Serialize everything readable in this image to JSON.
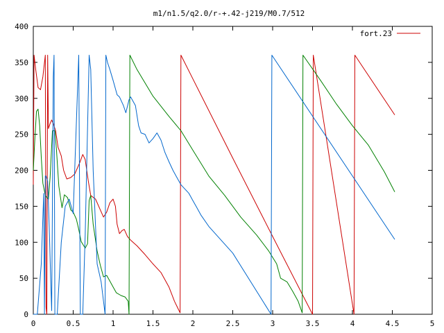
{
  "chart_data": {
    "type": "line",
    "title": "m1/n1.5/q2.0/r-+.42-j219/M0.7/512",
    "xlabel": "",
    "ylabel": "",
    "xlim": [
      0,
      5
    ],
    "ylim": [
      0,
      400
    ],
    "x_ticks": [
      0,
      0.5,
      1,
      1.5,
      2,
      2.5,
      3,
      3.5,
      4,
      4.5,
      5
    ],
    "x_tick_labels": [
      "0",
      "0.5",
      "1",
      "1.5",
      "2",
      "2.5",
      "3",
      "3.5",
      "4",
      "4.5",
      "5"
    ],
    "y_ticks": [
      0,
      50,
      100,
      150,
      200,
      250,
      300,
      350,
      400
    ],
    "y_tick_labels": [
      "0",
      "50",
      "100",
      "150",
      "200",
      "250",
      "300",
      "350",
      "400"
    ],
    "grid": false,
    "legend": {
      "position": "top-right",
      "entries": [
        {
          "label": "fort.23",
          "color": "#cc0000"
        }
      ]
    },
    "series": [
      {
        "color": "#cc0000",
        "points": [
          [
            0,
            180
          ],
          [
            0.01,
            360
          ],
          [
            0.03,
            340
          ],
          [
            0.06,
            315
          ],
          [
            0.09,
            312
          ],
          [
            0.12,
            330
          ],
          [
            0.15,
            360
          ],
          [
            0.16,
            10
          ],
          [
            0.17,
            0
          ],
          [
            0.18,
            360
          ],
          [
            0.19,
            258
          ],
          [
            0.21,
            265
          ],
          [
            0.23,
            270
          ],
          [
            0.25,
            265
          ],
          [
            0.28,
            255
          ],
          [
            0.31,
            232
          ],
          [
            0.35,
            220
          ],
          [
            0.38,
            200
          ],
          [
            0.42,
            188
          ],
          [
            0.47,
            190
          ],
          [
            0.52,
            195
          ],
          [
            0.58,
            210
          ],
          [
            0.62,
            222
          ],
          [
            0.65,
            215
          ],
          [
            0.69,
            185
          ],
          [
            0.72,
            165
          ],
          [
            0.78,
            160
          ],
          [
            0.84,
            145
          ],
          [
            0.88,
            135
          ],
          [
            0.92,
            142
          ],
          [
            0.96,
            155
          ],
          [
            1.0,
            160
          ],
          [
            1.03,
            150
          ],
          [
            1.05,
            125
          ],
          [
            1.08,
            112
          ],
          [
            1.11,
            116
          ],
          [
            1.14,
            118
          ],
          [
            1.18,
            108
          ],
          [
            1.22,
            103
          ],
          [
            1.3,
            95
          ],
          [
            1.4,
            83
          ],
          [
            1.5,
            70
          ],
          [
            1.6,
            58
          ],
          [
            1.7,
            38
          ],
          [
            1.77,
            18
          ],
          [
            1.84,
            2
          ],
          [
            1.85,
            360
          ],
          [
            2.0,
            327
          ],
          [
            2.5,
            217
          ],
          [
            3.0,
            108
          ],
          [
            3.5,
            0
          ],
          [
            3.51,
            360
          ],
          [
            4.02,
            0
          ],
          [
            4.03,
            360
          ],
          [
            4.53,
            277
          ]
        ]
      },
      {
        "color": "#008000",
        "points": [
          [
            0,
            200
          ],
          [
            0.02,
            245
          ],
          [
            0.04,
            282
          ],
          [
            0.06,
            285
          ],
          [
            0.08,
            262
          ],
          [
            0.1,
            218
          ],
          [
            0.12,
            182
          ],
          [
            0.15,
            165
          ],
          [
            0.19,
            160
          ],
          [
            0.21,
            190
          ],
          [
            0.24,
            255
          ],
          [
            0.27,
            255
          ],
          [
            0.29,
            230
          ],
          [
            0.32,
            178
          ],
          [
            0.36,
            148
          ],
          [
            0.39,
            166
          ],
          [
            0.43,
            162
          ],
          [
            0.47,
            145
          ],
          [
            0.5,
            142
          ],
          [
            0.54,
            132
          ],
          [
            0.57,
            118
          ],
          [
            0.6,
            101
          ],
          [
            0.65,
            92
          ],
          [
            0.68,
            98
          ],
          [
            0.7,
            158
          ],
          [
            0.72,
            165
          ],
          [
            0.75,
            125
          ],
          [
            0.78,
            103
          ],
          [
            0.8,
            88
          ],
          [
            0.84,
            68
          ],
          [
            0.88,
            52
          ],
          [
            0.92,
            54
          ],
          [
            0.96,
            46
          ],
          [
            1.0,
            38
          ],
          [
            1.04,
            30
          ],
          [
            1.1,
            26
          ],
          [
            1.15,
            24
          ],
          [
            1.19,
            18
          ],
          [
            1.2,
            0
          ],
          [
            1.21,
            360
          ],
          [
            1.3,
            340
          ],
          [
            1.5,
            303
          ],
          [
            1.7,
            275
          ],
          [
            1.85,
            255
          ],
          [
            2.0,
            228
          ],
          [
            2.2,
            192
          ],
          [
            2.4,
            165
          ],
          [
            2.6,
            135
          ],
          [
            2.8,
            110
          ],
          [
            2.95,
            88
          ],
          [
            3.05,
            70
          ],
          [
            3.1,
            50
          ],
          [
            3.18,
            45
          ],
          [
            3.25,
            32
          ],
          [
            3.32,
            18
          ],
          [
            3.37,
            2
          ],
          [
            3.38,
            360
          ],
          [
            3.6,
            325
          ],
          [
            3.8,
            292
          ],
          [
            4.0,
            262
          ],
          [
            4.2,
            235
          ],
          [
            4.4,
            198
          ],
          [
            4.53,
            170
          ]
        ]
      },
      {
        "color": "#0066cc",
        "points": [
          [
            0,
            0
          ],
          [
            0.05,
            0
          ],
          [
            0.1,
            70
          ],
          [
            0.13,
            168
          ],
          [
            0.14,
            0
          ],
          [
            0.15,
            192
          ],
          [
            0.16,
            192
          ],
          [
            0.18,
            185
          ],
          [
            0.2,
            120
          ],
          [
            0.22,
            40
          ],
          [
            0.23,
            5
          ],
          [
            0.25,
            330
          ],
          [
            0.26,
            360
          ],
          [
            0.27,
            0
          ],
          [
            0.3,
            0
          ],
          [
            0.35,
            100
          ],
          [
            0.4,
            150
          ],
          [
            0.45,
            160
          ],
          [
            0.5,
            140
          ],
          [
            0.55,
            300
          ],
          [
            0.57,
            360
          ],
          [
            0.59,
            0
          ],
          [
            0.62,
            0
          ],
          [
            0.65,
            110
          ],
          [
            0.7,
            360
          ],
          [
            0.72,
            340
          ],
          [
            0.75,
            200
          ],
          [
            0.8,
            70
          ],
          [
            0.85,
            45
          ],
          [
            0.9,
            0
          ],
          [
            0.91,
            360
          ],
          [
            0.93,
            350
          ],
          [
            0.96,
            340
          ],
          [
            1.0,
            325
          ],
          [
            1.05,
            305
          ],
          [
            1.08,
            302
          ],
          [
            1.13,
            290
          ],
          [
            1.16,
            280
          ],
          [
            1.2,
            298
          ],
          [
            1.22,
            302
          ],
          [
            1.28,
            290
          ],
          [
            1.32,
            262
          ],
          [
            1.35,
            252
          ],
          [
            1.4,
            250
          ],
          [
            1.45,
            238
          ],
          [
            1.5,
            244
          ],
          [
            1.55,
            252
          ],
          [
            1.6,
            242
          ],
          [
            1.65,
            225
          ],
          [
            1.7,
            212
          ],
          [
            1.75,
            200
          ],
          [
            1.8,
            190
          ],
          [
            1.85,
            180
          ],
          [
            1.95,
            168
          ],
          [
            2.0,
            158
          ],
          [
            2.05,
            148
          ],
          [
            2.1,
            138
          ],
          [
            2.2,
            122
          ],
          [
            2.5,
            85
          ],
          [
            2.98,
            0
          ],
          [
            2.99,
            360
          ],
          [
            4.53,
            104
          ]
        ]
      }
    ]
  }
}
